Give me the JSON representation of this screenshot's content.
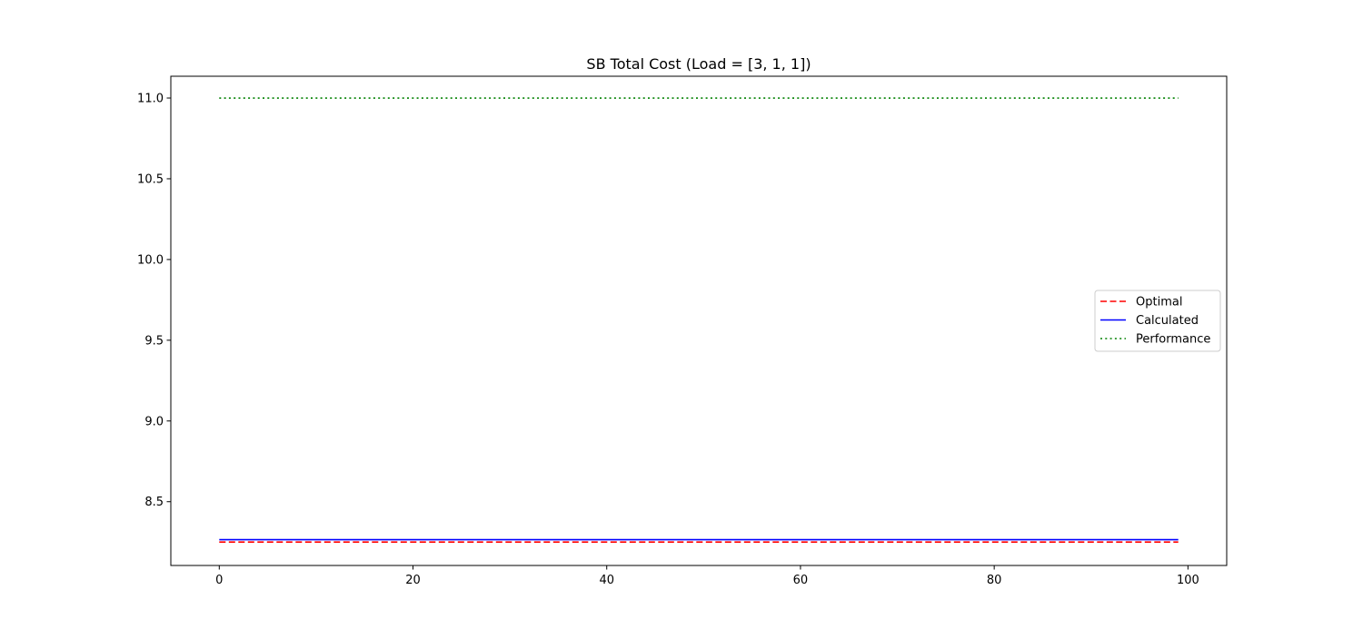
{
  "chart_data": {
    "type": "line",
    "title": "SB Total Cost (Load = [3, 1, 1])",
    "xlabel": "",
    "ylabel": "",
    "xlim": [
      -5,
      104
    ],
    "ylim": [
      8.105,
      11.135
    ],
    "xticks": [
      0,
      20,
      40,
      60,
      80,
      100
    ],
    "xtick_labels": [
      "0",
      "20",
      "40",
      "60",
      "80",
      "100"
    ],
    "yticks": [
      8.5,
      9.0,
      9.5,
      10.0,
      10.5,
      11.0
    ],
    "ytick_labels": [
      "8.5",
      "9.0",
      "9.5",
      "10.0",
      "10.5",
      "11.0"
    ],
    "x_range": [
      0,
      99
    ],
    "grid": false,
    "legend_position": "center-right",
    "series": [
      {
        "name": "Optimal",
        "value": 8.25,
        "color": "#ff0000",
        "style": "dashed"
      },
      {
        "name": "Calculated",
        "value": 8.265,
        "color": "#0000ff",
        "style": "solid"
      },
      {
        "name": "Performance",
        "value": 11.0,
        "color": "#008000",
        "style": "dotted"
      }
    ]
  }
}
